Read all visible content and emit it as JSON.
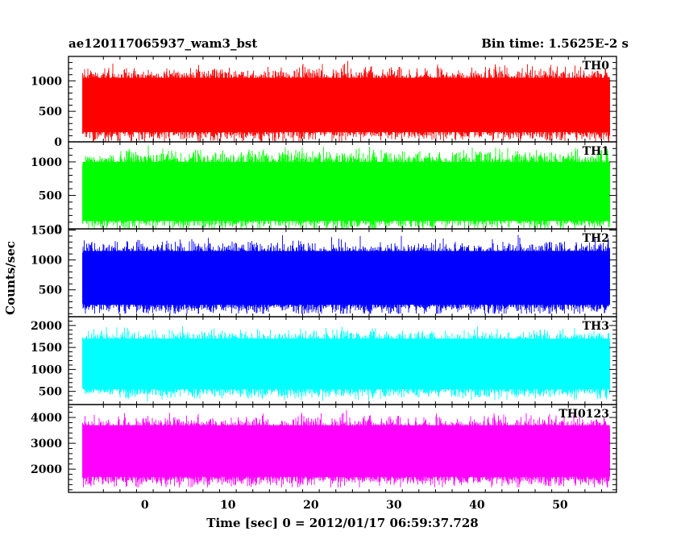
{
  "chart_data": {
    "type": "line",
    "title": "ae120117065937_wam3_bst",
    "bin_time_label": "Bin time: 1.5625E-2 s",
    "xlabel": "Time [sec] 0 = 2012/01/17 06:59:37.728",
    "ylabel": "Counts/sec",
    "xlim": [
      -9.2,
      56.8
    ],
    "x_data_range": [
      -7.5,
      56.0
    ],
    "bin_time": 0.015625,
    "x_ticks": [
      0,
      10,
      20,
      30,
      40,
      50
    ],
    "x_tick_labels": [
      "0",
      "10",
      "20",
      "30",
      "40",
      "50"
    ],
    "grid": false,
    "series": [
      {
        "name": "TH0",
        "color": "#ff0000",
        "ylim": [
          0,
          1400
        ],
        "y_ticks": [
          0,
          500,
          1000
        ],
        "y_tick_labels": [
          "0",
          "500",
          "1000"
        ],
        "band": [
          160,
          1050
        ],
        "mean": 600,
        "range": [
          0,
          1400
        ]
      },
      {
        "name": "TH1",
        "color": "#00ff00",
        "ylim": [
          0,
          1300
        ],
        "y_ticks": [
          0,
          500,
          1000
        ],
        "y_tick_labels": [
          "0",
          "500",
          "1000"
        ],
        "band": [
          120,
          1000
        ],
        "mean": 560,
        "range": [
          0,
          1300
        ]
      },
      {
        "name": "TH2",
        "color": "#0000ff",
        "ylim": [
          50,
          1520
        ],
        "y_ticks": [
          500,
          1000,
          1500
        ],
        "y_tick_labels": [
          "500",
          "1000",
          "1500"
        ],
        "band": [
          250,
          1150
        ],
        "mean": 680,
        "range": [
          100,
          1520
        ]
      },
      {
        "name": "TH3",
        "color": "#00ffff",
        "ylim": [
          200,
          2200
        ],
        "y_ticks": [
          500,
          1000,
          1500,
          2000
        ],
        "y_tick_labels": [
          "500",
          "1000",
          "1500",
          "2000"
        ],
        "band": [
          550,
          1700
        ],
        "mean": 1100,
        "range": [
          250,
          2200
        ]
      },
      {
        "name": "TH0123",
        "color": "#ff00ff",
        "ylim": [
          1100,
          4500
        ],
        "y_ticks": [
          2000,
          3000,
          4000
        ],
        "y_tick_labels": [
          "2000",
          "3000",
          "4000"
        ],
        "band": [
          1700,
          3700
        ],
        "mean": 2650,
        "range": [
          1300,
          4500
        ]
      }
    ]
  }
}
